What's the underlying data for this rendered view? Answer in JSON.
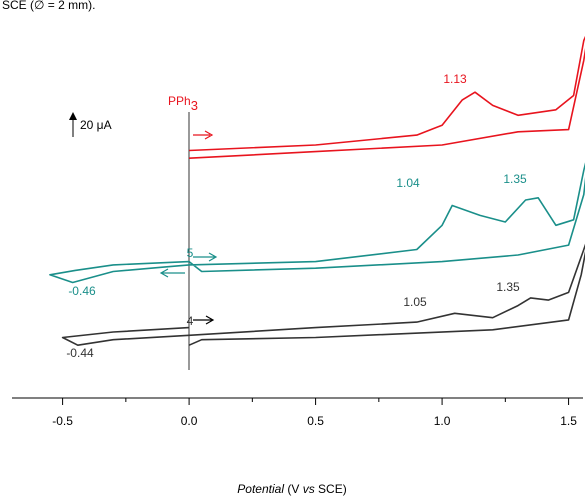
{
  "chart_data": {
    "type": "line",
    "caption_fragment": "SCE (∅ = 2 mm).",
    "x_label": [
      "Potential",
      "(V",
      "vs",
      "SCE)"
    ],
    "xlim": [
      -0.7,
      1.557
    ],
    "xticks": [
      -0.5,
      {
        "value": 0,
        "label": "0.0"
      },
      0.5,
      {
        "value": 1,
        "label": "1.0"
      },
      1.5
    ],
    "ylim": [
      0,
      360
    ],
    "scale_bar": "20 μA",
    "series": [
      {
        "name": "PPh3",
        "color": "#e8141e",
        "x": [
          0,
          0.5,
          0.9,
          1.0,
          1.08,
          1.13,
          1.2,
          1.3,
          1.45,
          1.52,
          1.56,
          1.58,
          1.56,
          1.5,
          1.3,
          1.0,
          0.5,
          0.0
        ],
        "values": [
          225,
          230,
          239,
          248,
          271,
          278,
          266,
          257,
          262,
          275,
          325,
          335,
          307,
          244,
          242,
          230,
          224,
          218
        ]
      },
      {
        "name": "5",
        "color": "#1a8f8a",
        "x": [
          0,
          -0.1,
          -0.3,
          -0.45,
          -0.55,
          -0.46,
          -0.3,
          -0.1,
          0,
          0.5,
          0.9,
          1.0,
          1.04,
          1.15,
          1.25,
          1.33,
          1.38,
          1.45,
          1.52,
          1.56,
          1.58,
          1.56,
          1.5,
          1.3,
          1.0,
          0.5,
          0.05,
          0
        ],
        "values": [
          124,
          123,
          121,
          116,
          112,
          105,
          115,
          119,
          121,
          124,
          135,
          157,
          175,
          166,
          160,
          180,
          182,
          157,
          162,
          207,
          225,
          185,
          139,
          130,
          124,
          118,
          115,
          124
        ]
      },
      {
        "name": "4",
        "color": "#333333",
        "x": [
          0,
          -0.3,
          -0.5,
          -0.44,
          -0.3,
          0,
          0.5,
          0.9,
          1.05,
          1.2,
          1.3,
          1.35,
          1.42,
          1.5,
          1.56,
          1.58,
          1.55,
          1.5,
          1.2,
          0.5,
          0.05,
          0
        ],
        "values": [
          64,
          60,
          55,
          48,
          53,
          57,
          64,
          69,
          77,
          73,
          84,
          91,
          89,
          96,
          135,
          148,
          112,
          71,
          62,
          55,
          53,
          48
        ]
      }
    ],
    "annotations": [
      "1.13",
      "1.04",
      "1.35",
      "-0.46",
      "1.05",
      "1.35",
      "-0.44"
    ]
  }
}
